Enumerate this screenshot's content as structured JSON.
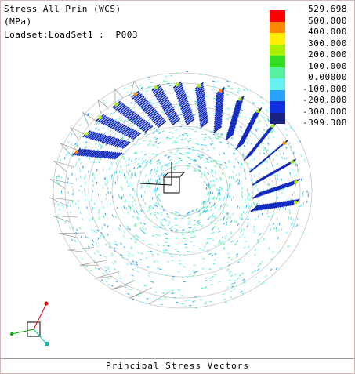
{
  "header": {
    "lines": [
      "Stress All Prin (WCS)",
      "(MPa)",
      "Loadset:LoadSet1 :  P003"
    ]
  },
  "legend": {
    "labels": [
      "529.698",
      "500.000",
      "400.000",
      "300.000",
      "200.000",
      "100.000",
      "0.00000",
      "-100.000",
      "-200.000",
      "-300.000",
      "-399.308"
    ],
    "colors": [
      "#ff0000",
      "#ff8800",
      "#ffee00",
      "#aaf000",
      "#33dd22",
      "#55f0a0",
      "#66f0f0",
      "#2aa0ff",
      "#1030e0",
      "#1a2280"
    ]
  },
  "footer": {
    "caption": "Principal Stress Vectors"
  }
}
